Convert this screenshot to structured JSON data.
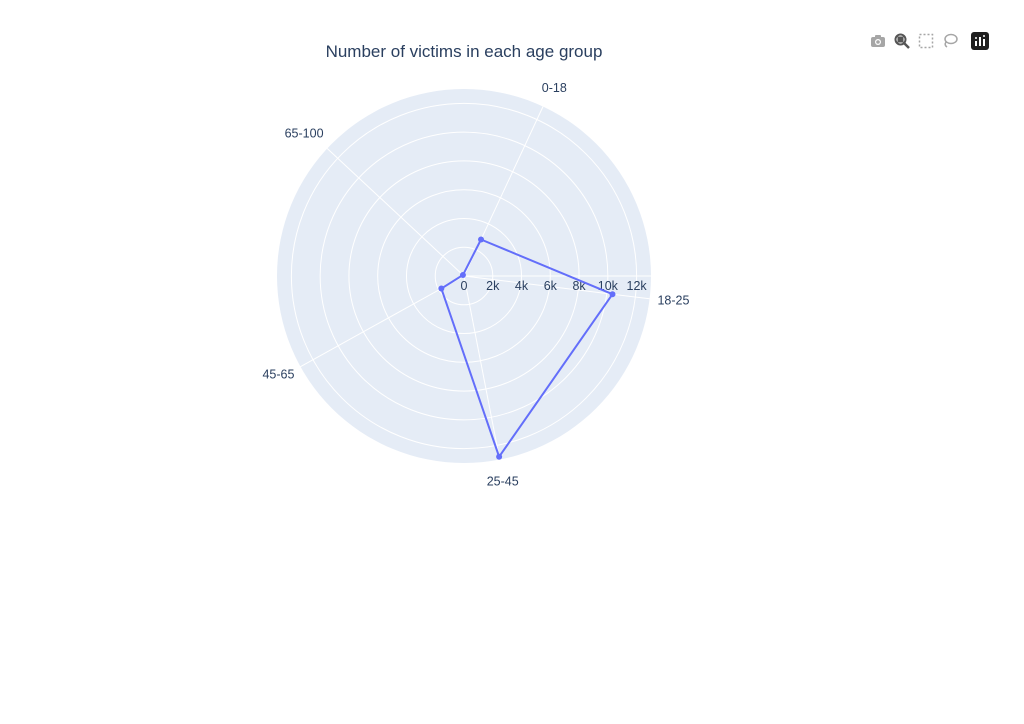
{
  "chart_data": {
    "type": "radar",
    "title": "Number of victims in each age group",
    "categories": [
      "0-18",
      "18-25",
      "25-45",
      "45-65",
      "65-100"
    ],
    "values": [
      2800,
      10400,
      12800,
      1800,
      100
    ],
    "radial_ticks": [
      "0",
      "2k",
      "4k",
      "6k",
      "8k",
      "10k",
      "12k"
    ],
    "radial_range": [
      0,
      13000
    ],
    "series_color": "#636efa",
    "background_color": "#e5ecf6",
    "grid_color": "#ffffff"
  },
  "modebar": {
    "icons": [
      "camera-icon",
      "zoom-icon",
      "box-select-icon",
      "lasso-icon",
      "plotly-logo-icon"
    ]
  }
}
